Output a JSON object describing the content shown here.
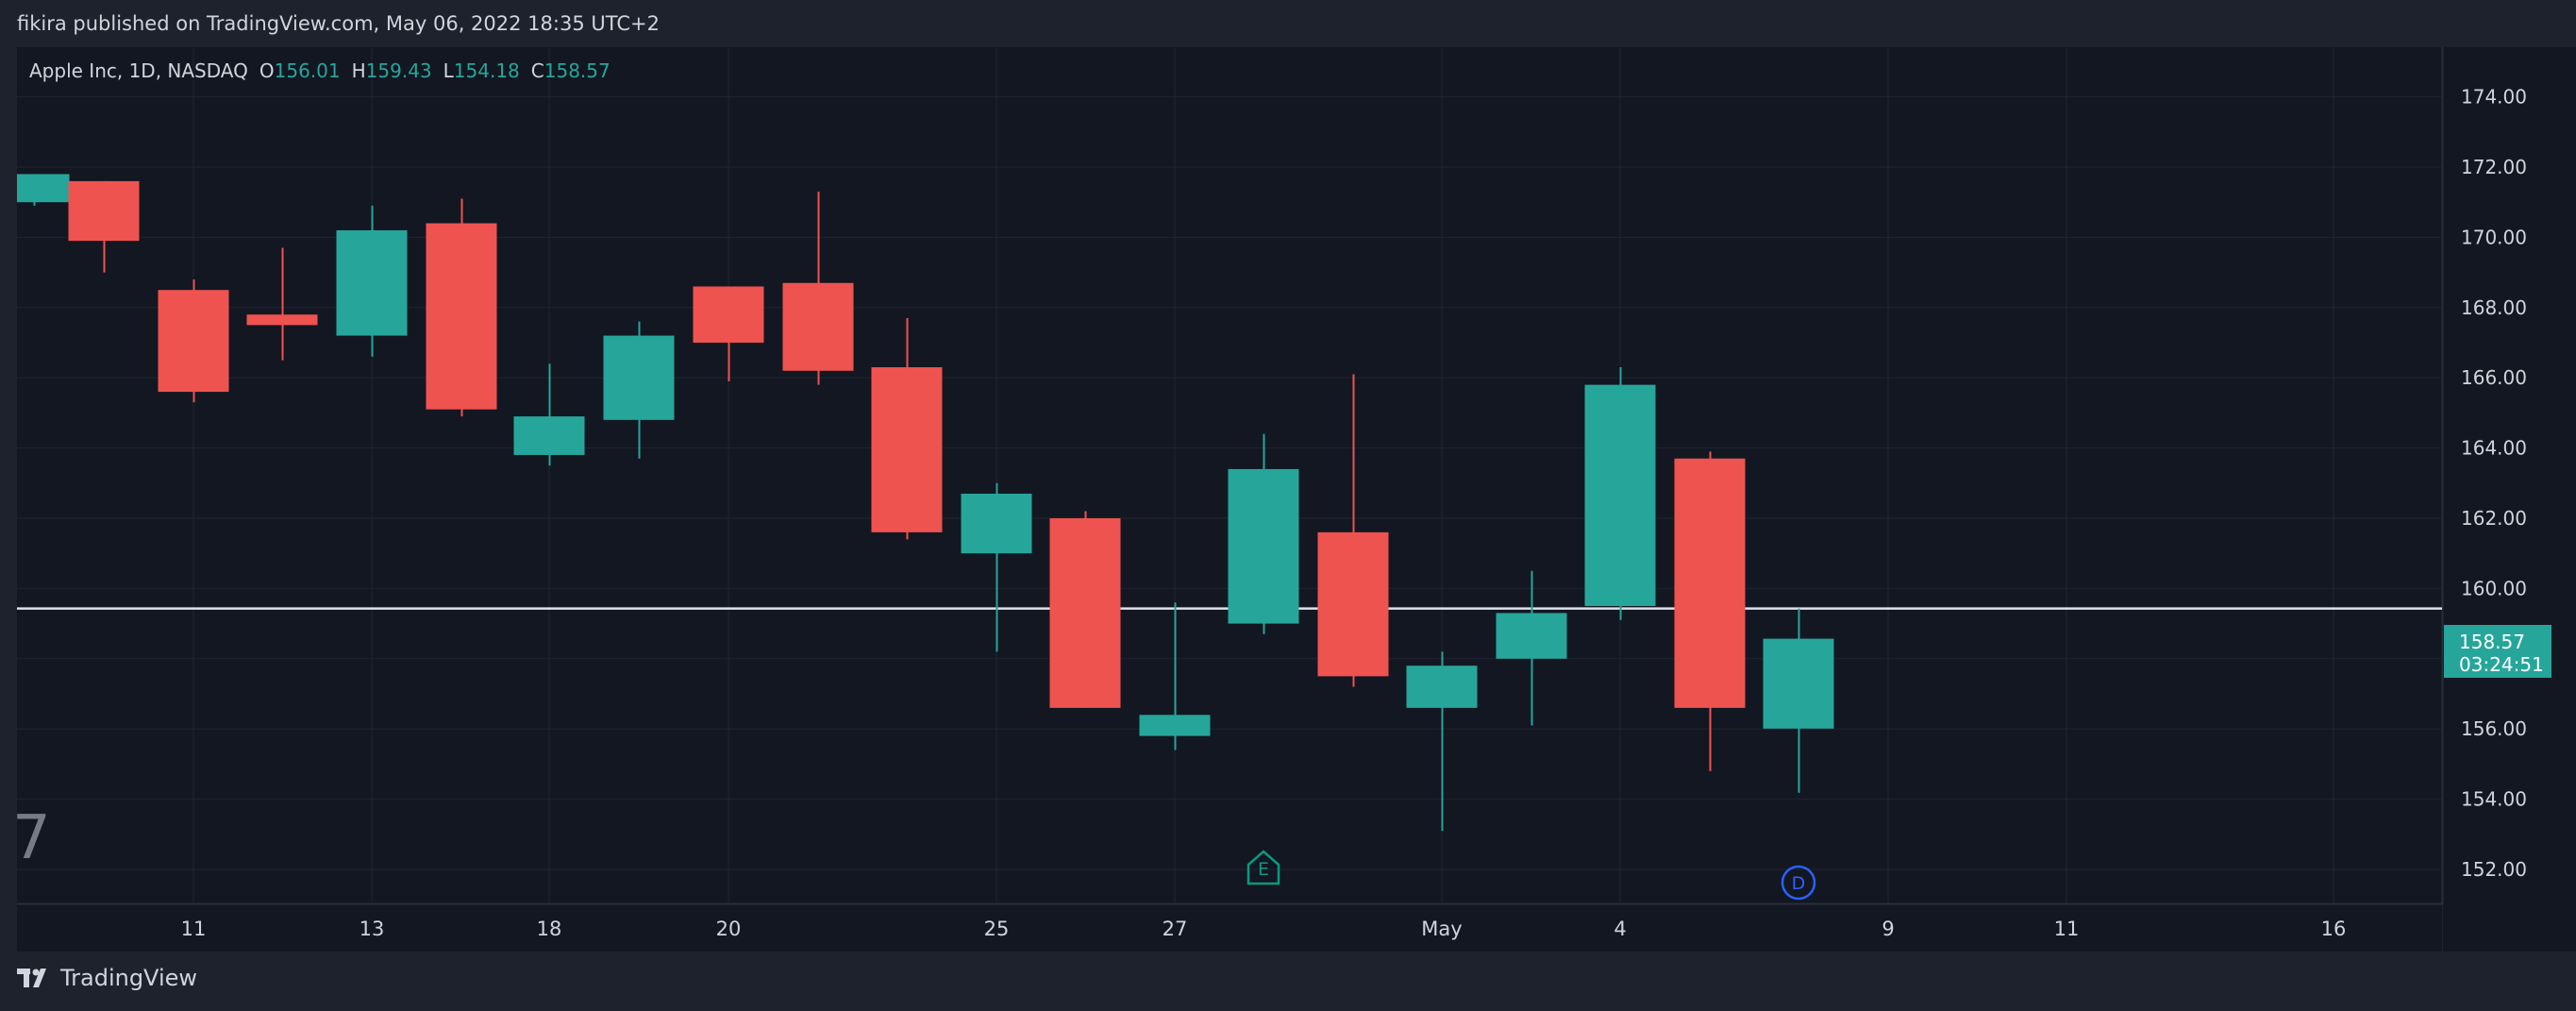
{
  "header": {
    "published_text": "fikira published on TradingView.com, May 06, 2022 18:35 UTC+2"
  },
  "legend": {
    "symbol": "Apple Inc, 1D, NASDAQ",
    "open_label": "O",
    "open_value": "156.01",
    "high_label": "H",
    "high_value": "159.43",
    "low_label": "L",
    "low_value": "154.18",
    "close_label": "C",
    "close_value": "158.57"
  },
  "badge": "7",
  "price_tag": {
    "price": "158.57",
    "countdown": "03:24:51"
  },
  "footer": {
    "brand": "TradingView"
  },
  "colors": {
    "background": "#131722",
    "frame": "#1e222d",
    "grid": "#1f2430",
    "up": "#26a69a",
    "down": "#ef5350",
    "text": "#d1d4dc",
    "muted": "#787b86",
    "hline": "#e0e3eb"
  },
  "chart_data": {
    "type": "candlestick",
    "symbol": "Apple Inc",
    "interval": "1D",
    "exchange": "NASDAQ",
    "ylim": [
      151.0,
      175.5
    ],
    "y_ticks": [
      "152.00",
      "154.00",
      "156.00",
      "158.00",
      "160.00",
      "162.00",
      "164.00",
      "166.00",
      "168.00",
      "170.00",
      "172.00",
      "174.00"
    ],
    "x_tick_labels": [
      "11",
      "13",
      "18",
      "20",
      "25",
      "27",
      "May",
      "4",
      "9",
      "11",
      "16"
    ],
    "horizontal_line": 159.43,
    "grid": true,
    "candles": [
      {
        "date": "Apr 07",
        "open": 171.0,
        "high": 171.8,
        "low": 170.9,
        "close": 171.8
      },
      {
        "date": "Apr 08",
        "open": 171.6,
        "high": 171.6,
        "low": 169.0,
        "close": 169.9
      },
      {
        "date": "Apr 11",
        "open": 168.5,
        "high": 168.8,
        "low": 165.3,
        "close": 165.6
      },
      {
        "date": "Apr 12",
        "open": 167.8,
        "high": 169.7,
        "low": 166.5,
        "close": 167.5
      },
      {
        "date": "Apr 13",
        "open": 167.2,
        "high": 170.9,
        "low": 166.6,
        "close": 170.2
      },
      {
        "date": "Apr 14",
        "open": 170.4,
        "high": 171.1,
        "low": 164.9,
        "close": 165.1
      },
      {
        "date": "Apr 18",
        "open": 163.8,
        "high": 166.4,
        "low": 163.5,
        "close": 164.9
      },
      {
        "date": "Apr 19",
        "open": 164.8,
        "high": 167.6,
        "low": 163.7,
        "close": 167.2
      },
      {
        "date": "Apr 20",
        "open": 168.6,
        "high": 168.6,
        "low": 165.9,
        "close": 167.0
      },
      {
        "date": "Apr 21",
        "open": 168.7,
        "high": 171.3,
        "low": 165.8,
        "close": 166.2
      },
      {
        "date": "Apr 22",
        "open": 166.3,
        "high": 167.7,
        "low": 161.4,
        "close": 161.6
      },
      {
        "date": "Apr 25",
        "open": 161.0,
        "high": 163.0,
        "low": 158.2,
        "close": 162.7
      },
      {
        "date": "Apr 26",
        "open": 162.0,
        "high": 162.2,
        "low": 156.6,
        "close": 156.6
      },
      {
        "date": "Apr 27",
        "open": 155.8,
        "high": 159.6,
        "low": 155.4,
        "close": 156.4
      },
      {
        "date": "Apr 28",
        "open": 159.0,
        "high": 164.4,
        "low": 158.7,
        "close": 163.4
      },
      {
        "date": "Apr 29",
        "open": 161.6,
        "high": 166.1,
        "low": 157.2,
        "close": 157.5
      },
      {
        "date": "May 02",
        "open": 156.6,
        "high": 158.2,
        "low": 153.1,
        "close": 157.8
      },
      {
        "date": "May 03",
        "open": 158.0,
        "high": 160.5,
        "low": 156.1,
        "close": 159.3
      },
      {
        "date": "May 04",
        "open": 159.5,
        "high": 166.3,
        "low": 159.1,
        "close": 165.8
      },
      {
        "date": "May 05",
        "open": 163.7,
        "high": 163.9,
        "low": 154.8,
        "close": 156.6
      },
      {
        "date": "May 06",
        "open": 156.01,
        "high": 159.43,
        "low": 154.18,
        "close": 158.57
      }
    ],
    "events": [
      {
        "date": "Apr 28",
        "label": "E"
      },
      {
        "date": "May 06",
        "label": "D"
      }
    ]
  }
}
